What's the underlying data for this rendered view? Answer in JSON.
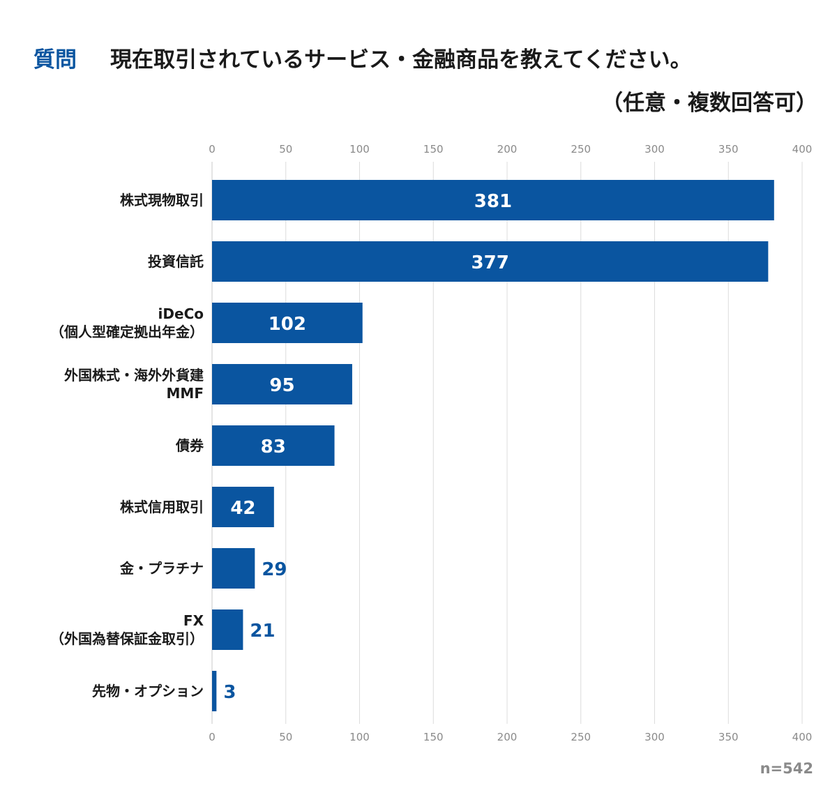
{
  "header": {
    "prefix": "質問",
    "question": "現在取引されているサービス・金融商品を教えてください。",
    "note": "（任意・複数回答可）"
  },
  "footer": {
    "sample_size": "n=542"
  },
  "colors": {
    "bar": "#0a55a0",
    "label_inside": "#ffffff",
    "label_outside": "#0a55a0"
  },
  "chart_data": {
    "type": "bar",
    "orientation": "horizontal",
    "title": "現在取引されているサービス・金融商品を教えてください。",
    "xlim": [
      0,
      400
    ],
    "xticks": [
      0,
      50,
      100,
      150,
      200,
      250,
      300,
      350,
      400
    ],
    "grid": true,
    "categories": [
      [
        "株式現物取引"
      ],
      [
        "投資信託"
      ],
      [
        "iDeCo",
        "（個人型確定拠出年金）"
      ],
      [
        "外国株式・海外外貨建",
        "MMF"
      ],
      [
        "債券"
      ],
      [
        "株式信用取引"
      ],
      [
        "金・プラチナ"
      ],
      [
        "FX",
        "（外国為替保証金取引）"
      ],
      [
        "先物・オプション"
      ]
    ],
    "values": [
      381,
      377,
      102,
      95,
      83,
      42,
      29,
      21,
      3
    ]
  }
}
